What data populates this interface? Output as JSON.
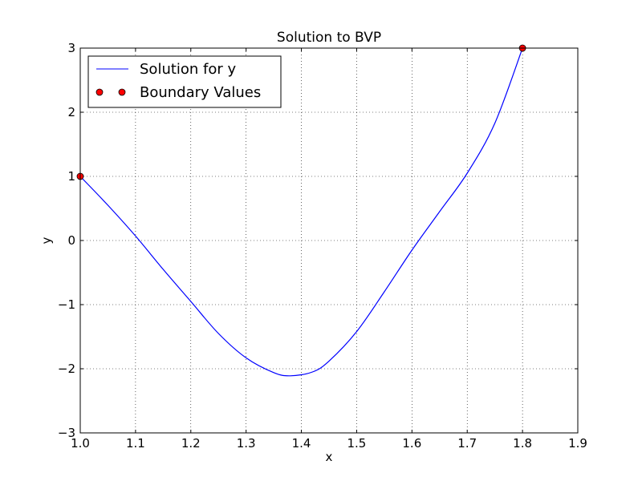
{
  "chart_data": {
    "type": "line",
    "title": "Solution to BVP",
    "xlabel": "x",
    "ylabel": "y",
    "xlim": [
      1.0,
      1.9
    ],
    "ylim": [
      -3,
      3
    ],
    "x_ticks": [
      "1.0",
      "1.1",
      "1.2",
      "1.3",
      "1.4",
      "1.5",
      "1.6",
      "1.7",
      "1.8",
      "1.9"
    ],
    "y_ticks": [
      "−3",
      "−2",
      "−1",
      "0",
      "1",
      "2",
      "3"
    ],
    "grid": true,
    "legend_position": "top-left",
    "series": [
      {
        "name": "Solution for y",
        "style": "line",
        "color": "#0000ff",
        "x": [
          1.0,
          1.05,
          1.1,
          1.15,
          1.2,
          1.25,
          1.3,
          1.35,
          1.38,
          1.42,
          1.45,
          1.5,
          1.55,
          1.6,
          1.65,
          1.7,
          1.75,
          1.8
        ],
        "y": [
          1.0,
          0.55,
          0.07,
          -0.45,
          -0.95,
          -1.45,
          -1.83,
          -2.06,
          -2.11,
          -2.05,
          -1.88,
          -1.42,
          -0.8,
          -0.15,
          0.45,
          1.05,
          1.83,
          3.0
        ]
      },
      {
        "name": "Boundary Values",
        "style": "markers",
        "color": "#ff0000",
        "x": [
          1.0,
          1.8
        ],
        "y": [
          1.0,
          3.0
        ]
      }
    ]
  }
}
